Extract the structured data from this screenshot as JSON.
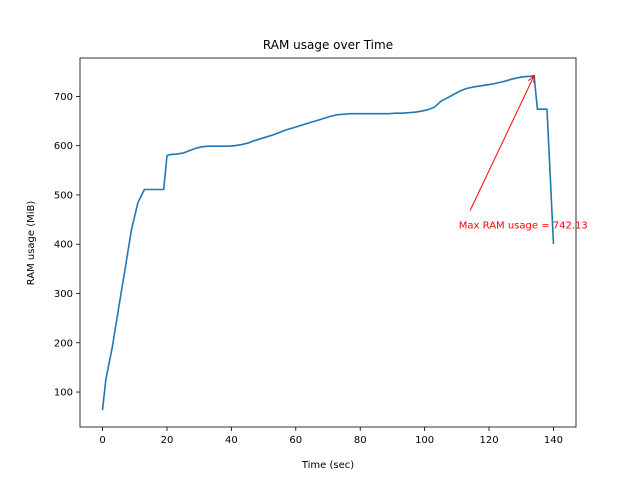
{
  "chart_data": {
    "type": "line",
    "title": "RAM usage over Time",
    "xlabel": "Time (sec)",
    "ylabel": "RAM usage (MiB)",
    "xlim": [
      -7,
      147
    ],
    "ylim": [
      29,
      778
    ],
    "xticks": [
      0,
      20,
      40,
      60,
      80,
      100,
      120,
      140
    ],
    "yticks": [
      100,
      200,
      300,
      400,
      500,
      600,
      700
    ],
    "grid": false,
    "line_color": "#1f77b4",
    "series": [
      {
        "x": [
          0,
          1,
          3,
          5,
          7,
          9,
          11,
          13,
          15,
          17,
          18,
          19,
          20,
          21,
          23,
          25,
          27,
          29,
          31,
          33,
          35,
          37,
          39,
          41,
          43,
          45,
          47,
          49,
          51,
          53,
          55,
          57,
          59,
          61,
          63,
          65,
          67,
          69,
          71,
          73,
          75,
          77,
          79,
          81,
          83,
          85,
          87,
          89,
          91,
          93,
          95,
          97,
          99,
          101,
          103,
          105,
          107,
          109,
          111,
          113,
          115,
          117,
          119,
          121,
          123,
          125,
          127,
          129,
          131,
          133,
          134,
          135,
          137,
          138,
          139,
          140
        ],
        "y": [
          63,
          125,
          190,
          270,
          350,
          430,
          485,
          511,
          511,
          511,
          511,
          511,
          580,
          582,
          583,
          585,
          590,
          595,
          598,
          599,
          599,
          599,
          599,
          600,
          602,
          605,
          610,
          614,
          618,
          622,
          627,
          632,
          636,
          640,
          644,
          648,
          652,
          656,
          660,
          663,
          664,
          665,
          665,
          665,
          665,
          665,
          665,
          665,
          666,
          666,
          667,
          668,
          670,
          673,
          678,
          690,
          697,
          704,
          711,
          716,
          719,
          721,
          723,
          725,
          728,
          731,
          735,
          738,
          740,
          741,
          742.13,
          674,
          674,
          674,
          540,
          400
        ]
      }
    ],
    "annotation": {
      "text": "Max RAM usage = 742.13",
      "color": "#ff0000",
      "point": [
        134,
        742.13
      ],
      "text_pos": [
        103,
        440
      ]
    }
  }
}
